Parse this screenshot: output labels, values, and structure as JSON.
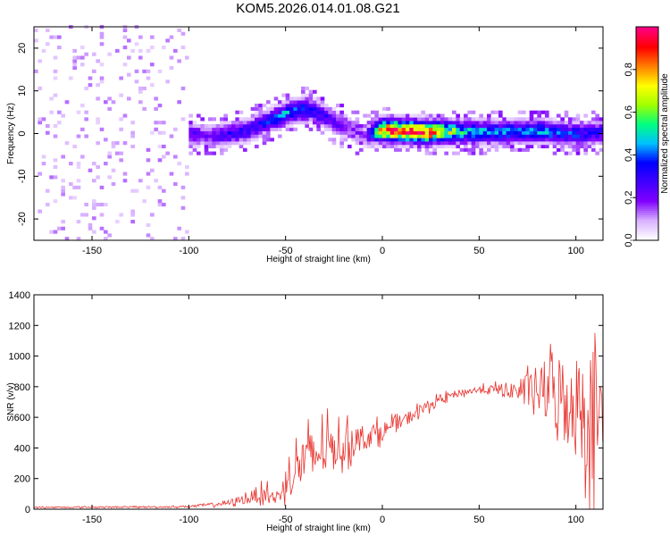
{
  "page": {
    "title": "KOM5.2026.014.01.08.G21"
  },
  "chart_data": [
    {
      "type": "heatmap",
      "title": "KOM5.2026.014.01.08.G21",
      "xlabel": "Height of straight line (km)",
      "ylabel": "Frequency (Hz)",
      "xlim": [
        -180,
        114
      ],
      "ylim": [
        -25,
        25
      ],
      "xticks": [
        -150,
        -100,
        -50,
        0,
        50,
        100
      ],
      "xtick_labels": [
        "-150",
        "-100",
        "-50",
        "0",
        "50",
        "100"
      ],
      "yticks": [
        -20,
        -10,
        0,
        10,
        20
      ],
      "ytick_labels": [
        "-20",
        "-10",
        "0",
        "10",
        "20"
      ],
      "colorbar": {
        "label": "Normalized spectral amplitude",
        "range": [
          0,
          1
        ],
        "ticks": [
          0.0,
          0.2,
          0.4,
          0.6,
          0.8
        ],
        "tick_labels": [
          "0.0",
          "0.2",
          "0.4",
          "0.6",
          "0.8"
        ],
        "colormap": [
          "#ffffff",
          "#d8b0ff",
          "#8000ff",
          "#4000ff",
          "#0000ff",
          "#00c0ff",
          "#00ff80",
          "#a0ff00",
          "#ffff00",
          "#ff8000",
          "#ff0000",
          "#ff0080"
        ]
      },
      "ridge": {
        "description": "dominant frequency track",
        "x": [
          -100,
          -90,
          -80,
          -70,
          -60,
          -50,
          -40,
          -32,
          -25,
          -18,
          -10,
          -5,
          0,
          20,
          40,
          60,
          80,
          100,
          114
        ],
        "y": [
          -0.5,
          -1.0,
          -0.5,
          0.5,
          2.5,
          4.5,
          5.5,
          4.0,
          2.0,
          1.0,
          -1.0,
          0.0,
          0.5,
          0.0,
          0.0,
          0.0,
          0.2,
          -0.5,
          0.0
        ],
        "peak_amplitude": [
          0.25,
          0.2,
          0.3,
          0.3,
          0.35,
          0.45,
          0.4,
          0.3,
          0.25,
          0.2,
          0.15,
          0.5,
          0.9,
          0.98,
          0.5,
          0.4,
          0.45,
          0.35,
          0.3
        ]
      }
    },
    {
      "type": "line",
      "title": "",
      "xlabel": "Height of straight line (km)",
      "ylabel": "SNR (v/v)",
      "xlim": [
        -180,
        114
      ],
      "ylim": [
        0,
        1400
      ],
      "xticks": [
        -150,
        -100,
        -50,
        0,
        50,
        100
      ],
      "xtick_labels": [
        "-150",
        "-100",
        "-50",
        "0",
        "50",
        "100"
      ],
      "yticks": [
        0,
        200,
        400,
        600,
        800,
        1000,
        1200,
        1400
      ],
      "ytick_labels": [
        "0",
        "200",
        "400",
        "600",
        "800",
        "1000",
        "1200",
        "1400"
      ],
      "series": [
        {
          "name": "SNR",
          "color": "#e8332e",
          "envelope_x": [
            -180,
            -110,
            -100,
            -90,
            -80,
            -70,
            -60,
            -55,
            -50,
            -45,
            -40,
            -30,
            -20,
            -10,
            0,
            10,
            20,
            30,
            40,
            50,
            60,
            70,
            80,
            90,
            100,
            105,
            110,
            114
          ],
          "envelope_y": [
            12,
            15,
            18,
            28,
            40,
            70,
            110,
            60,
            170,
            260,
            320,
            390,
            420,
            470,
            510,
            570,
            650,
            720,
            760,
            780,
            780,
            775,
            780,
            760,
            680,
            650,
            620,
            560
          ],
          "noise_amplitude": [
            0.35,
            0.35,
            0.35,
            0.4,
            0.45,
            0.5,
            0.55,
            0.5,
            0.6,
            0.6,
            0.55,
            0.45,
            0.3,
            0.18,
            0.12,
            0.08,
            0.06,
            0.04,
            0.03,
            0.03,
            0.05,
            0.08,
            0.2,
            0.35,
            0.5,
            0.6,
            0.75,
            0.6
          ]
        }
      ]
    }
  ]
}
